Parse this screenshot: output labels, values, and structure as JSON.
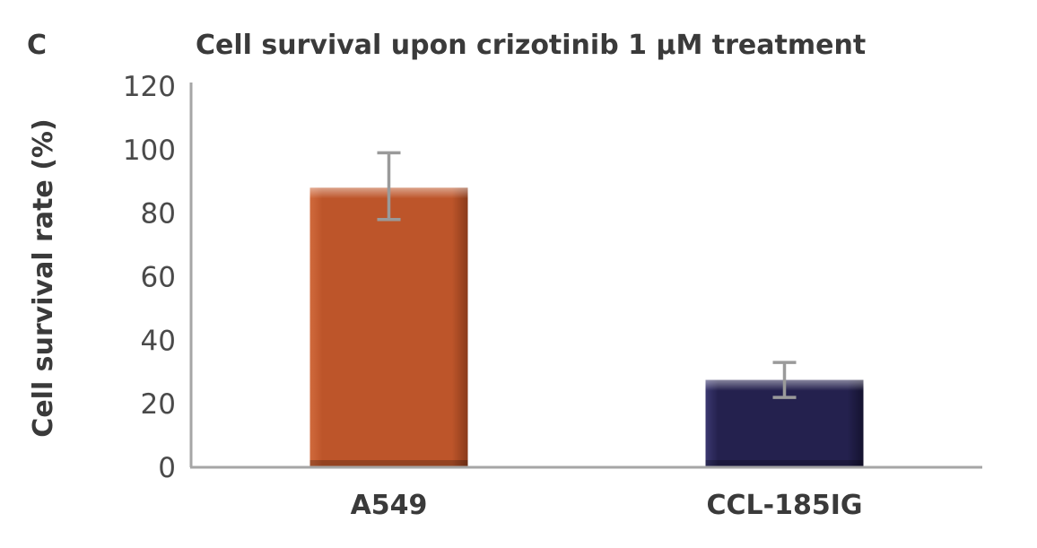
{
  "panel_label": "C",
  "chart_data": {
    "type": "bar",
    "title": "Cell survival upon crizotinib 1 μM treatment",
    "xlabel": "",
    "ylabel": "Cell survival rate (%)",
    "categories": [
      "A549",
      "CCL-185IG"
    ],
    "values": [
      88,
      27.5
    ],
    "error": [
      {
        "low": 78,
        "high": 99
      },
      {
        "low": 22,
        "high": 33
      }
    ],
    "ylim": [
      0,
      120
    ],
    "yticks": [
      0,
      20,
      40,
      60,
      80,
      100,
      120
    ],
    "grid": false,
    "legend": "none",
    "bar_colors": [
      "#bd552a",
      "#24214e"
    ],
    "axis_color": "#a6a6a6",
    "errorbar_color": "#9a9a9a"
  }
}
